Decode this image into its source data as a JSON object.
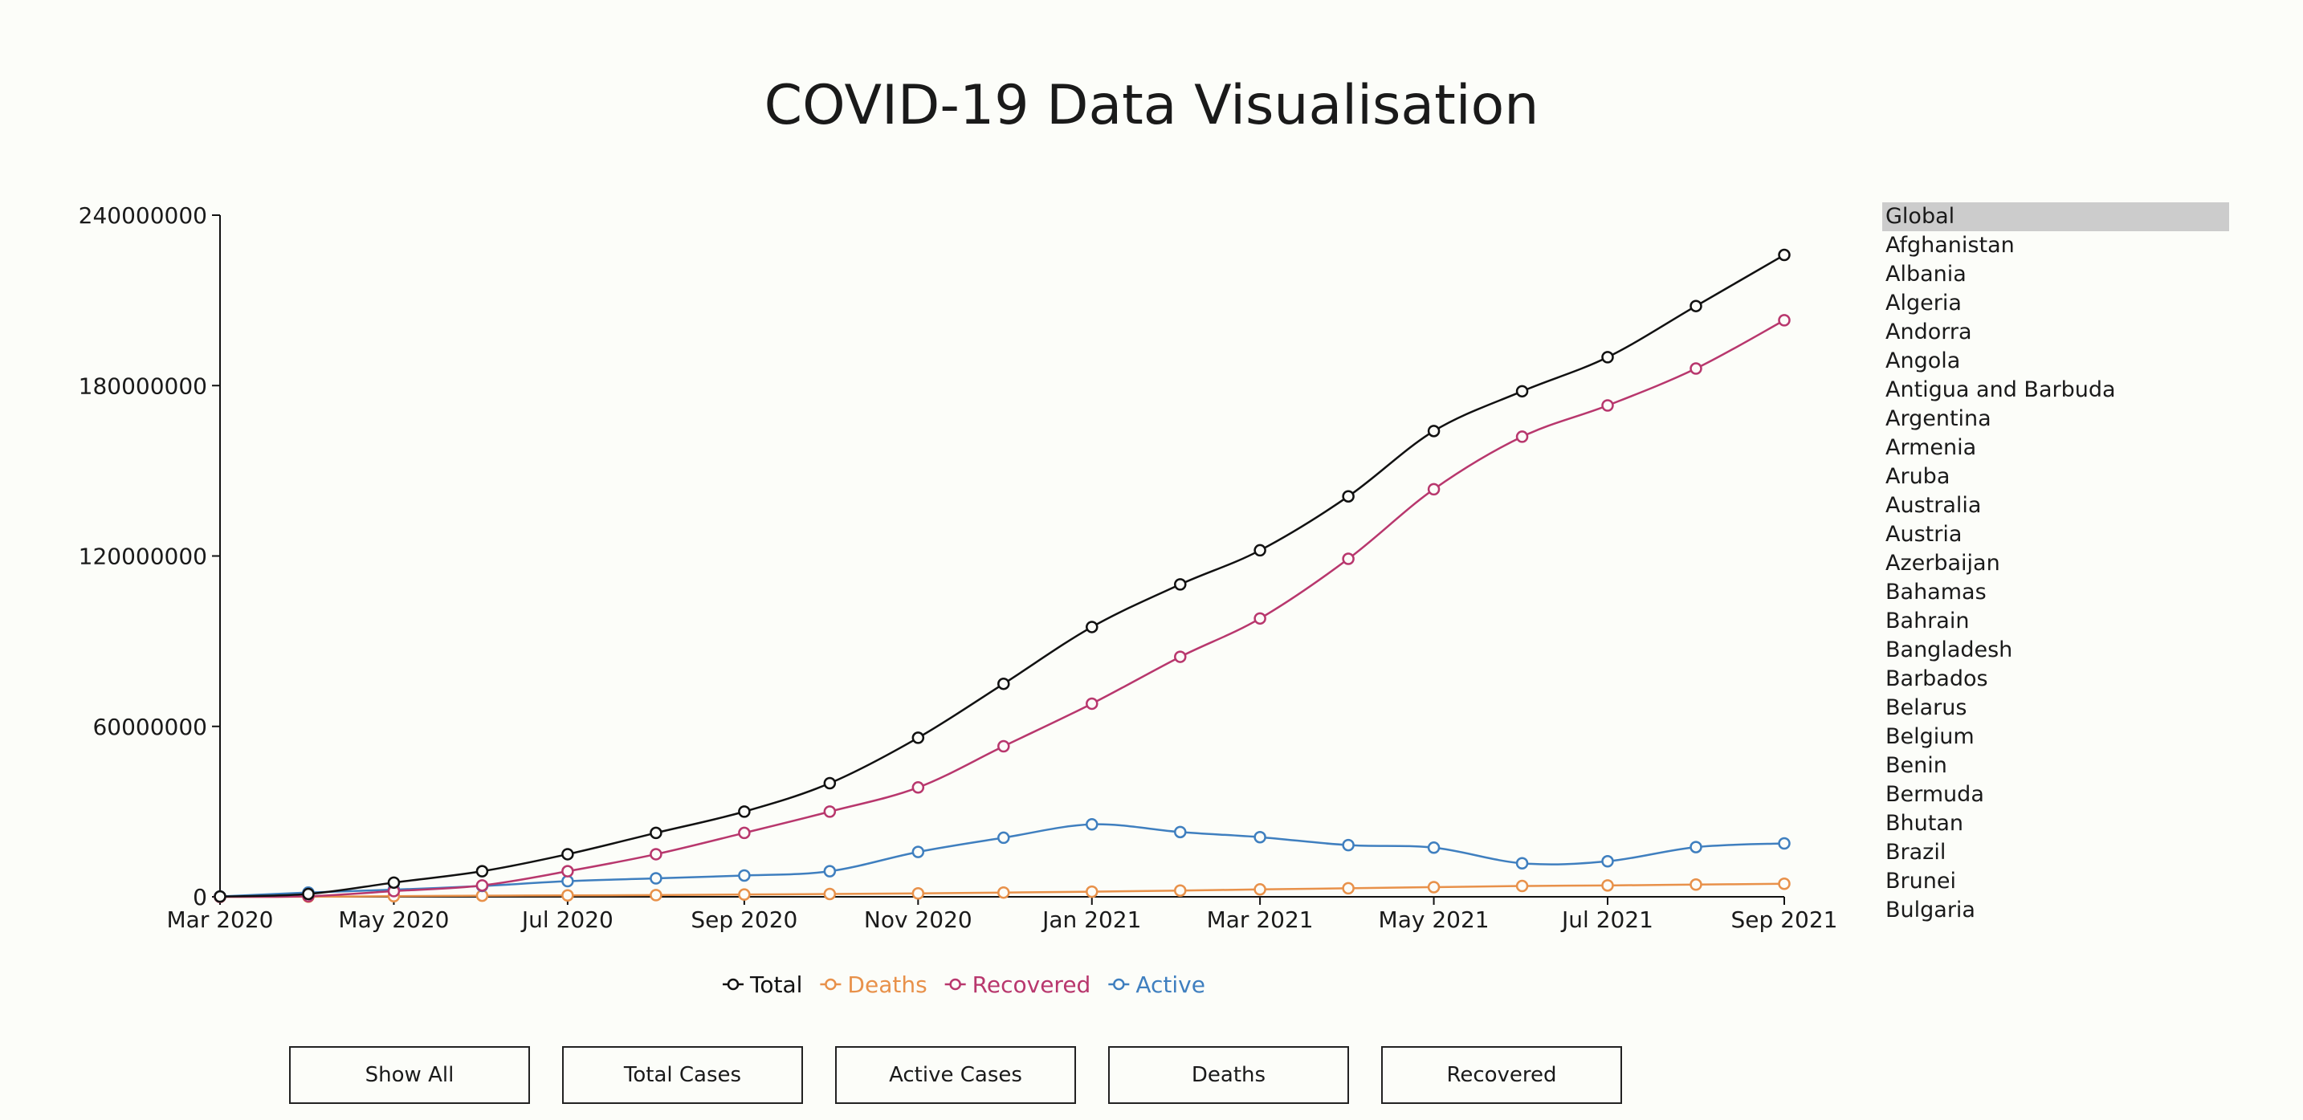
{
  "page": {
    "title": "COVID-19 Data Visualisation"
  },
  "colors": {
    "total": "#111111",
    "deaths": "#e8914a",
    "recovered": "#b8376d",
    "active": "#3f7fbf"
  },
  "chart_data": {
    "type": "line",
    "x": [
      "2020-03-01",
      "2020-04-01",
      "2020-05-01",
      "2020-06-01",
      "2020-07-01",
      "2020-08-01",
      "2020-09-01",
      "2020-10-01",
      "2020-11-01",
      "2020-12-01",
      "2021-01-01",
      "2021-02-01",
      "2021-03-01",
      "2021-04-01",
      "2021-05-01",
      "2021-06-01",
      "2021-07-01",
      "2021-08-01",
      "2021-09-01"
    ],
    "x_tick_labels": [
      "Mar 2020",
      "May 2020",
      "Jul 2020",
      "Sep 2020",
      "Nov 2020",
      "Jan 2021",
      "Mar 2021",
      "May 2021",
      "Jul 2021",
      "Sep 2021"
    ],
    "x_tick_dates": [
      "2020-03-01",
      "2020-05-01",
      "2020-07-01",
      "2020-09-01",
      "2020-11-01",
      "2021-01-01",
      "2021-03-01",
      "2021-05-01",
      "2021-07-01",
      "2021-09-01"
    ],
    "y_ticks": [
      0,
      60000000,
      120000000,
      180000000,
      240000000
    ],
    "y_tick_labels": [
      "0",
      "60000000",
      "120000000",
      "180000000",
      "240000000"
    ],
    "ylim": [
      0,
      240000000
    ],
    "grid": false,
    "legend_position": "bottom-center",
    "series": [
      {
        "name": "Total",
        "color_key": "total",
        "values": [
          100000,
          1000000,
          5000000,
          9000000,
          15000000,
          22500000,
          30000000,
          40000000,
          56000000,
          75000000,
          95000000,
          110000000,
          122000000,
          141000000,
          164000000,
          178000000,
          190000000,
          208000000,
          226000000
        ]
      },
      {
        "name": "Deaths",
        "color_key": "deaths",
        "values": [
          0,
          20000,
          200000,
          400000,
          500000,
          600000,
          800000,
          1000000,
          1200000,
          1500000,
          1800000,
          2200000,
          2600000,
          3000000,
          3400000,
          3800000,
          4000000,
          4300000,
          4600000
        ]
      },
      {
        "name": "Recovered",
        "color_key": "recovered",
        "values": [
          0,
          200000,
          2000000,
          4000000,
          9000000,
          15000000,
          22500000,
          30000000,
          38500000,
          53000000,
          68000000,
          84500000,
          98000000,
          119000000,
          143500000,
          162000000,
          173000000,
          186000000,
          203000000
        ]
      },
      {
        "name": "Active",
        "color_key": "active",
        "values": [
          100000,
          1500000,
          2500000,
          3800000,
          5500000,
          6500000,
          7500000,
          9000000,
          15800000,
          20800000,
          25500000,
          22800000,
          21000000,
          18200000,
          17300000,
          11800000,
          12500000,
          17500000,
          18800000
        ]
      }
    ]
  },
  "countries": [
    "Global",
    "Afghanistan",
    "Albania",
    "Algeria",
    "Andorra",
    "Angola",
    "Antigua and Barbuda",
    "Argentina",
    "Armenia",
    "Aruba",
    "Australia",
    "Austria",
    "Azerbaijan",
    "Bahamas",
    "Bahrain",
    "Bangladesh",
    "Barbados",
    "Belarus",
    "Belgium",
    "Benin",
    "Bermuda",
    "Bhutan",
    "Brazil",
    "Brunei",
    "Bulgaria"
  ],
  "selected_country": "Global",
  "buttons": {
    "show_all": "Show All",
    "total_cases": "Total Cases",
    "active_cases": "Active Cases",
    "deaths": "Deaths",
    "recovered": "Recovered"
  }
}
